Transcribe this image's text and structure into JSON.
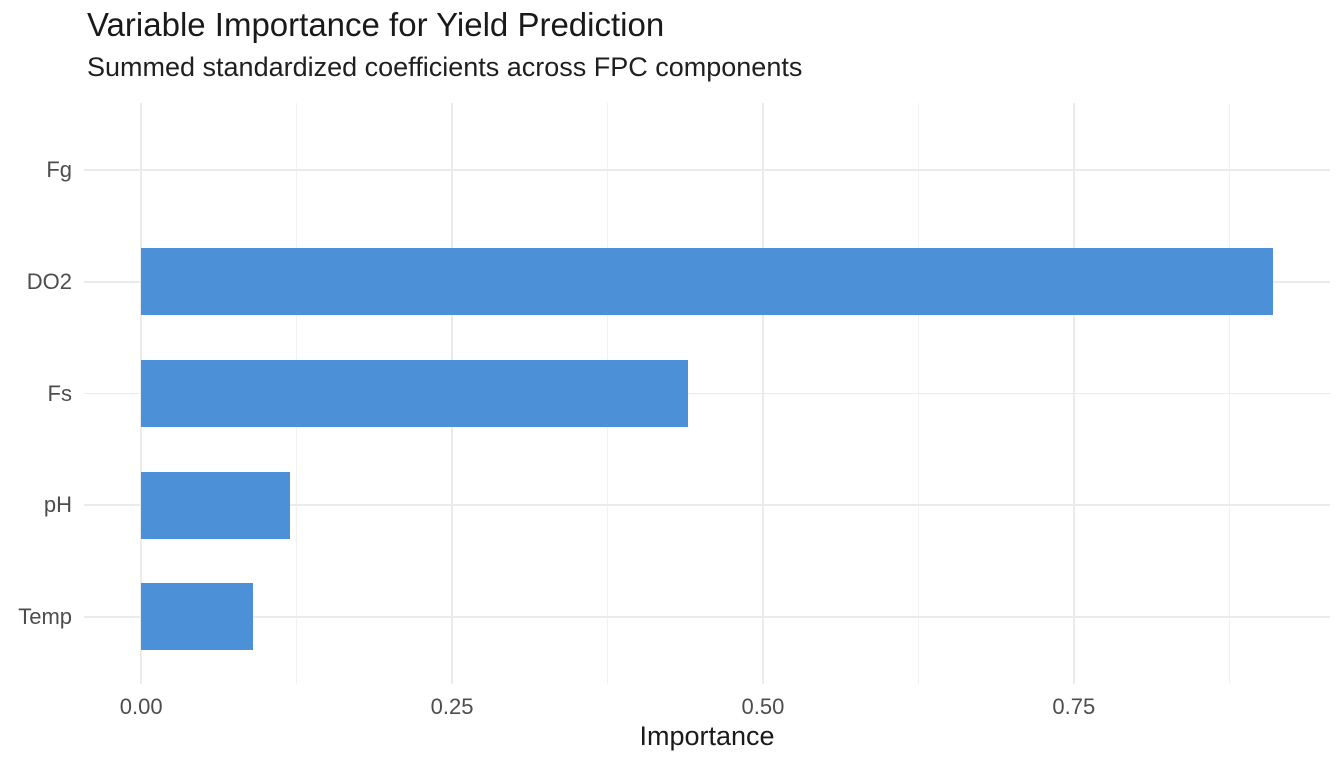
{
  "chart_data": {
    "type": "bar",
    "orientation": "horizontal",
    "title": "Variable Importance for Yield Prediction",
    "subtitle": "Summed standardized coefficients across FPC components",
    "xlabel": "Importance",
    "ylabel": "",
    "categories": [
      "Fg",
      "DO2",
      "Fs",
      "pH",
      "Temp"
    ],
    "values": [
      0.0,
      0.91,
      0.44,
      0.12,
      0.09
    ],
    "bar_start": 0,
    "xlim": [
      -0.046,
      0.956
    ],
    "x_ticks": [
      0,
      0.25,
      0.5,
      0.75
    ],
    "x_tick_labels": [
      "0.00",
      "0.25",
      "0.50",
      "0.75"
    ],
    "x_minor_gridlines": [
      0.125,
      0.375,
      0.625,
      0.875
    ],
    "grid": "vertical major+minor, horizontal major at categories",
    "legend_position": "none",
    "colors": {
      "bar_fill": "#4C90D8",
      "grid_major": "#EBEBEB",
      "grid_minor": "#F1F1F1",
      "axis_text": "#4D4D4D",
      "title_text": "#1A1A1A",
      "background": "#FFFFFF"
    }
  }
}
